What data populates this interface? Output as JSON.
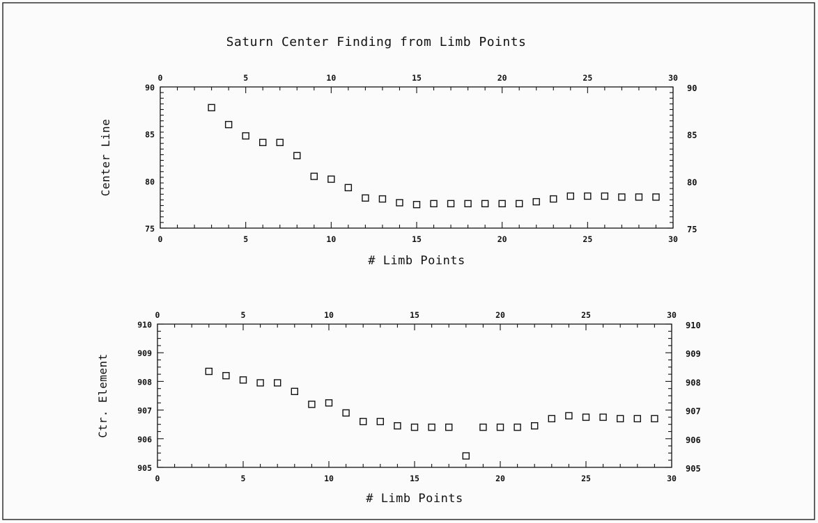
{
  "title": "Saturn Center Finding from Limb Points",
  "colors": {
    "ink": "#111111",
    "paper": "#fbfbfb"
  },
  "chart_data": [
    {
      "type": "scatter",
      "marker": "open-square",
      "title": "Saturn Center Finding from Limb Points",
      "xlabel": "# Limb Points",
      "ylabel": "Center Line",
      "xlim": [
        0,
        30
      ],
      "ylim": [
        75,
        90
      ],
      "x_ticks": [
        "0",
        "5",
        "10",
        "15",
        "20",
        "25",
        "30"
      ],
      "y_ticks": [
        "75",
        "80",
        "85",
        "90"
      ],
      "grid": false,
      "x": [
        3,
        4,
        5,
        6,
        7,
        8,
        9,
        10,
        11,
        12,
        13,
        14,
        15,
        16,
        17,
        18,
        19,
        20,
        21,
        22,
        23,
        24,
        25,
        26,
        27,
        28,
        29
      ],
      "y": [
        87.8,
        86.0,
        84.8,
        84.1,
        84.1,
        82.7,
        80.5,
        80.2,
        79.3,
        78.2,
        78.1,
        77.7,
        77.5,
        77.6,
        77.6,
        77.6,
        77.6,
        77.6,
        77.6,
        77.8,
        78.1,
        78.4,
        78.4,
        78.4,
        78.3,
        78.3,
        78.3
      ]
    },
    {
      "type": "scatter",
      "marker": "open-square",
      "xlabel": "# Limb Points",
      "ylabel": "Ctr. Element",
      "xlim": [
        0,
        30
      ],
      "ylim": [
        905,
        910
      ],
      "x_ticks": [
        "0",
        "5",
        "10",
        "15",
        "20",
        "25",
        "30"
      ],
      "y_ticks": [
        "905",
        "906",
        "907",
        "908",
        "909",
        "910"
      ],
      "grid": false,
      "x": [
        3,
        4,
        5,
        6,
        7,
        8,
        9,
        10,
        11,
        12,
        13,
        14,
        15,
        16,
        17,
        18,
        19,
        20,
        21,
        22,
        23,
        24,
        25,
        26,
        27,
        28,
        29
      ],
      "y": [
        908.35,
        908.2,
        908.05,
        907.95,
        907.95,
        907.65,
        907.2,
        907.25,
        906.9,
        906.6,
        906.6,
        906.45,
        906.4,
        906.4,
        906.4,
        905.4,
        906.4,
        906.4,
        906.4,
        906.45,
        906.7,
        906.8,
        906.75,
        906.75,
        906.7,
        906.7,
        906.7
      ]
    }
  ]
}
